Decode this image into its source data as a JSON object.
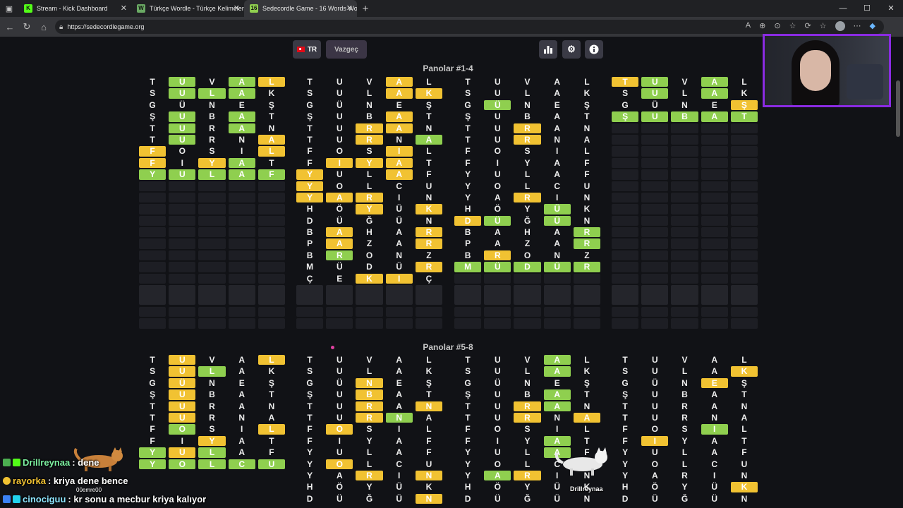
{
  "browser": {
    "tabs": [
      {
        "title": "Stream - Kick Dashboard",
        "favicon": "K",
        "favicon_color": "#53fc18",
        "active": false
      },
      {
        "title": "Türkçe Wordle - Türkçe Kelimeler",
        "favicon": "W",
        "favicon_color": "#6aaa64",
        "active": false
      },
      {
        "title": "Sedecordle Game - 16 Words Wo",
        "favicon": "16",
        "favicon_color": "#8fcf4f",
        "active": true
      }
    ],
    "url": "https://sedecordlegame.org"
  },
  "toolbar": {
    "lang_label": "TR",
    "giveup_label": "Vazgeç",
    "icons": [
      "stats-icon",
      "gear-icon",
      "info-icon"
    ]
  },
  "sections": [
    {
      "title": "Panolar #1-4"
    },
    {
      "title": "Panolar #5-8"
    }
  ],
  "boards_top": [
    {
      "rows": [
        "T.U-V.A-L+",
        "S.U-L-A-K.",
        "G.Ü.N.E.Ş.",
        "Ş.U-B.A-T.",
        "T.U-R.A-N.",
        "T.U-R.N.A+",
        "F+O.S.I.L+",
        "F+I.Y+A-T.",
        "Y-U-L-A-F-"
      ],
      "empty_rows": 9,
      "big_rows": 1
    },
    {
      "rows": [
        "T.U.V.A+L.",
        "S.U.L.A+K+",
        "G.Ü.N.E.Ş.",
        "Ş.U.B.A+T.",
        "T.U.R+A+N.",
        "T.U.R+N.A-",
        "F.O.S.I+L.",
        "F.I+Y+A+T.",
        "Y+U.L.A+F.",
        "Y+O.L.C.U.",
        "Y+A+R+I.N.",
        "H.Ö.Y+Ü.K+",
        "D.Ü.Ğ.Ü.N.",
        "B.A+H.A.R+",
        "P.A+Z.A.R+",
        "B.R-O.N.Z.",
        "M.Ü.D.Ü.R+",
        "Ç.E.K+I+Ç."
      ],
      "empty_rows": 0,
      "big_rows": 1
    },
    {
      "rows": [
        "T.U.V.A.L.",
        "S.U.L.A.K.",
        "G.Ü-N.E.Ş.",
        "Ş.U.B.A.T.",
        "T.U.R+A.N.",
        "T.U.R+N.A.",
        "F.O.S.I.L.",
        "F.I.Y.A.F.",
        "Y.U.L.A.F.",
        "Y.O.L.C.U.",
        "Y.A.R+I.N.",
        "H.Ö.Y.Ü-K.",
        "D+Ü-Ğ.Ü-N.",
        "B.A.H.A.R-",
        "P.A.Z.A.R-",
        "B.R+O.N.Z.",
        "M-Ü-D-Ü-R-"
      ],
      "empty_rows": 1,
      "big_rows": 1
    },
    {
      "rows": [
        "T+U-V.A-L.",
        "S.U-L.A-K.",
        "G.Ü.N.E.Ş+",
        "Ş-U-B-A-T-"
      ],
      "empty_rows": 14,
      "big_rows": 1
    }
  ],
  "boards_bottom": [
    {
      "rows": [
        "T.U+V.A.L+",
        "S.U+L-A.K.",
        "G.Ü+N.E.Ş.",
        "Ş.U+B.A.T.",
        "T.U+R.A.N.",
        "T.U+R.N.A.",
        "F.O-S.I.L+",
        "F.I.Y+A.T.",
        "Y-U+L-A.F.",
        "Y-O-L-C-U-"
      ]
    },
    {
      "rows": [
        "T.U.V.A.L.",
        "S.U.L.A.K.",
        "G.Ü.N+E.Ş.",
        "Ş.U.B+A.T.",
        "T.U.R+A.N+",
        "T.U.R+N-A.",
        "F.O+S.I.L.",
        "F.I.Y.A.F.",
        "Y.U.L.A.F.",
        "Y.O+L.C.U.",
        "Y.A.R+I.N+",
        "H.Ö.Y.Ü.K.",
        "D.Ü.Ğ.Ü.N+"
      ]
    },
    {
      "rows": [
        "T.U.V.A-L.",
        "S.U.L.A-K.",
        "G.Ü.N.E.Ş.",
        "Ş.U.B.A-T.",
        "T.U.R+A-N.",
        "T.U.R+N.A+",
        "F.O.S.I.L.",
        "F.I.Y.A-T.",
        "Y.U.L.A-F.",
        "Y.O.L.C.U.",
        "Y.A-R+I.N.",
        "H.Ö.Y.Ü.K.",
        "D.Ü.Ğ.Ü.N."
      ]
    },
    {
      "rows": [
        "T.U.V.A.L.",
        "S.U.L.A.K+",
        "G.Ü.N.E+Ş.",
        "Ş.U.B.A.T.",
        "T.U.R.A.N.",
        "T.U.R.N.A.",
        "F.O.S.I-L.",
        "F.I+Y.A.T.",
        "Y.U.L.A.F.",
        "Y.O.L.C.U.",
        "Y.A.R.I.N.",
        "H.Ö.Y.Ü.K+",
        "D.Ü.Ğ.Ü.N."
      ]
    }
  ],
  "chat": [
    {
      "user": "Drillreynaa",
      "message": ": dene",
      "user_color": "#7cf0a0"
    },
    {
      "user": "rayorka",
      "message": ": kriya dene bence",
      "user_color": "#f1c232"
    },
    {
      "user": "cinociguu",
      "message": ": kr sonu a mecbur kriya kalıyor",
      "user_color": "#8ee6ff"
    }
  ],
  "overlay_labels": {
    "cat_label": "00emre00",
    "pet_label": "Drillreynaa"
  },
  "colors": {
    "correct": "#8fcf4f",
    "present": "#f1c232",
    "empty": "#1e1f25",
    "webcam_border": "#8a2be2"
  }
}
